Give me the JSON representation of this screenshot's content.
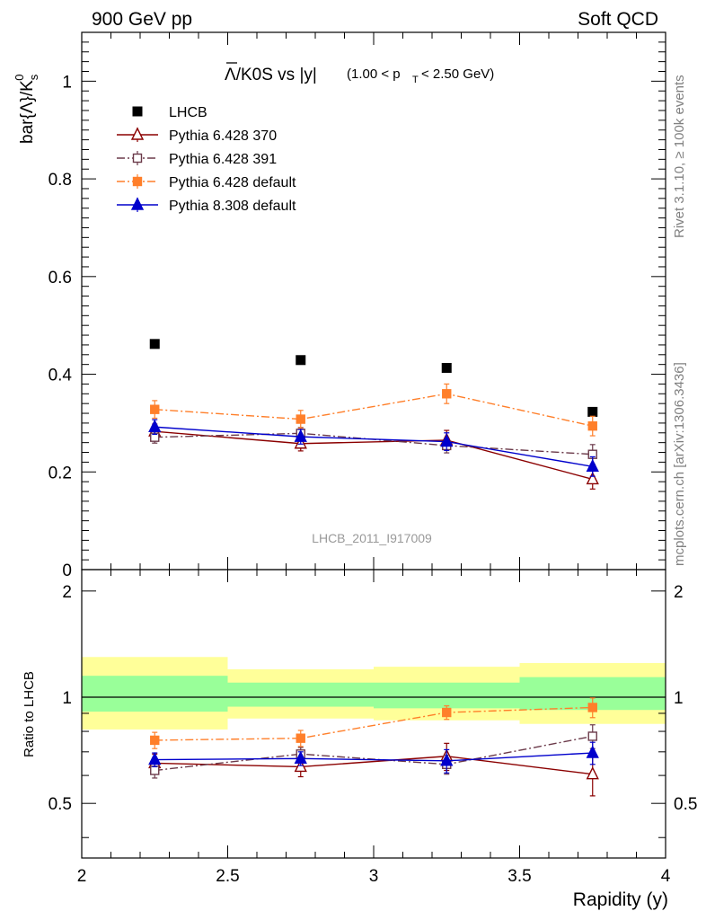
{
  "header": {
    "left": "900 GeV pp",
    "right": "Soft QCD"
  },
  "side_labels": {
    "rivet": "Rivet 3.1.10, ≥ 100k events",
    "mcplots": "mcplots.cern.ch [arXiv:1306.3436]"
  },
  "watermark": "LHCB_2011_I917009",
  "chart_data": [
    {
      "type": "scatter",
      "panel": "main",
      "title_main": "Λ/K0S vs |y|",
      "title_sub": "(1.00 < p",
      "title_sub_subscript": "T",
      "title_sub_tail": " < 2.50 GeV)",
      "ylabel_main": "bar{Λ}/K",
      "ylabel_sub": "s",
      "ylabel_sup": "0",
      "xlim": [
        2,
        4
      ],
      "ylim": [
        0,
        1.1
      ],
      "y_ticks": [
        0,
        0.2,
        0.4,
        0.6,
        0.8,
        1
      ],
      "y_tick_labels": [
        "0",
        "0.2",
        "0.4",
        "0.6",
        "0.8",
        "1"
      ],
      "x": [
        2.25,
        2.75,
        3.25,
        3.75
      ],
      "series": [
        {
          "name": "LHCB",
          "style": "data",
          "color": "#000000",
          "values": [
            0.462,
            0.429,
            0.413,
            0.323
          ],
          "errors": [
            0.004,
            0.004,
            0.004,
            0.004
          ]
        },
        {
          "name": "Pythia 6.428 370",
          "style": "triangle-open-solid",
          "color": "#8b0000",
          "values": [
            0.283,
            0.258,
            0.265,
            0.185
          ],
          "errors": [
            0.015,
            0.015,
            0.02,
            0.02
          ]
        },
        {
          "name": "Pythia 6.428 391",
          "style": "square-open-dashdot",
          "color": "#6b3a4a",
          "values": [
            0.271,
            0.279,
            0.254,
            0.236
          ],
          "errors": [
            0.012,
            0.012,
            0.015,
            0.02
          ]
        },
        {
          "name": "Pythia 6.428 default",
          "style": "square-filled-dashdot",
          "color": "#ff7f2a",
          "values": [
            0.328,
            0.308,
            0.36,
            0.294
          ],
          "errors": [
            0.018,
            0.018,
            0.02,
            0.02
          ]
        },
        {
          "name": "Pythia 8.308 default",
          "style": "triangle-filled-solid",
          "color": "#0000cc",
          "values": [
            0.292,
            0.272,
            0.262,
            0.211
          ],
          "errors": [
            0.015,
            0.015,
            0.018,
            0.02
          ]
        }
      ]
    },
    {
      "type": "scatter",
      "panel": "ratio",
      "ylabel": "Ratio to LHCB",
      "xlabel": "Rapidity (y)",
      "xlim": [
        2,
        4
      ],
      "ylim": [
        0.35,
        2.3
      ],
      "x_ticks": [
        2,
        2.5,
        3,
        3.5,
        4
      ],
      "x_tick_labels": [
        "2",
        "2.5",
        "3",
        "3.5",
        "4"
      ],
      "y_ticks": [
        0.5,
        1,
        2
      ],
      "y_tick_labels": [
        "0.5",
        "1",
        "2"
      ],
      "bands": [
        {
          "x0": 2.0,
          "x1": 2.5,
          "yellow": [
            0.81,
            1.3
          ],
          "green": [
            0.91,
            1.15
          ]
        },
        {
          "x0": 2.5,
          "x1": 3.0,
          "yellow": [
            0.87,
            1.2
          ],
          "green": [
            0.94,
            1.1
          ]
        },
        {
          "x0": 3.0,
          "x1": 3.5,
          "yellow": [
            0.86,
            1.22
          ],
          "green": [
            0.93,
            1.1
          ]
        },
        {
          "x0": 3.5,
          "x1": 4.0,
          "yellow": [
            0.84,
            1.25
          ],
          "green": [
            0.92,
            1.14
          ]
        }
      ],
      "x": [
        2.25,
        2.75,
        3.25,
        3.75
      ],
      "series": [
        {
          "name": "Pythia 6.428 370",
          "style": "triangle-open-solid",
          "color": "#8b0000",
          "values": [
            0.65,
            0.635,
            0.68,
            0.605
          ],
          "errors": [
            0.04,
            0.04,
            0.06,
            0.08
          ]
        },
        {
          "name": "Pythia 6.428 391",
          "style": "square-open-dashdot",
          "color": "#6b3a4a",
          "values": [
            0.62,
            0.69,
            0.645,
            0.775
          ],
          "errors": [
            0.03,
            0.03,
            0.04,
            0.06
          ]
        },
        {
          "name": "Pythia 6.428 default",
          "style": "square-filled-dashdot",
          "color": "#ff7f2a",
          "values": [
            0.755,
            0.765,
            0.905,
            0.935
          ],
          "errors": [
            0.04,
            0.04,
            0.04,
            0.06
          ]
        },
        {
          "name": "Pythia 8.308 default",
          "style": "triangle-filled-solid",
          "color": "#0000cc",
          "values": [
            0.665,
            0.67,
            0.66,
            0.695
          ],
          "errors": [
            0.03,
            0.03,
            0.05,
            0.05
          ]
        }
      ]
    }
  ],
  "colors": {
    "band_yellow": "#ffff99",
    "band_green": "#99ff99"
  }
}
